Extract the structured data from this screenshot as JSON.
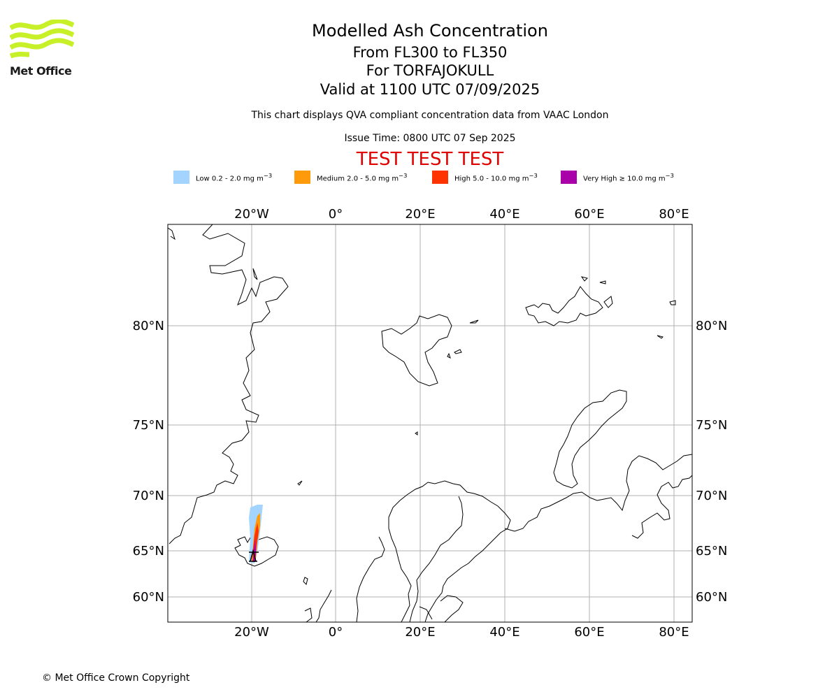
{
  "header": {
    "title": "Modelled Ash Concentration",
    "levels": "From FL300 to FL350",
    "volcano": "For TORFAJOKULL",
    "valid": "Valid at 1100 UTC 07/09/2025",
    "compliance": "This chart displays QVA compliant concentration data from VAAC London",
    "issue_time": "Issue Time: 0800 UTC 07 Sep 2025",
    "test_banner": "TEST TEST TEST"
  },
  "logo": {
    "text": "Met Office",
    "color": "#c8f029"
  },
  "legend": [
    {
      "label": "Low 0.2 - 2.0 mg m",
      "sup": "−3",
      "color": "#a3d4ff"
    },
    {
      "label": "Medium 2.0 - 5.0 mg m",
      "sup": "−3",
      "color": "#ff9a0a"
    },
    {
      "label": "High 5.0 - 10.0 mg m",
      "sup": "−3",
      "color": "#ff3300"
    },
    {
      "label": "Very High  ≥  10.0 mg m",
      "sup": "−3",
      "color": "#a900a9"
    }
  ],
  "map": {
    "lon_labels": [
      "20°W",
      "0°",
      "20°E",
      "40°E",
      "60°E",
      "80°E"
    ],
    "lat_labels": [
      "80°N",
      "75°N",
      "70°N",
      "65°N",
      "60°N"
    ],
    "gridline_color": "#b0b0b0"
  },
  "footer": {
    "copyright": "© Met Office Crown Copyright"
  }
}
